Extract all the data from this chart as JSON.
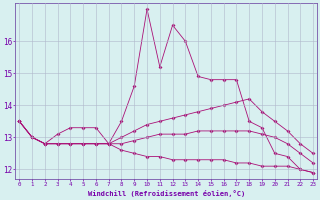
{
  "xlabel": "Windchill (Refroidissement éolien,°C)",
  "x": [
    0,
    1,
    2,
    3,
    4,
    5,
    6,
    7,
    8,
    9,
    10,
    11,
    12,
    13,
    14,
    15,
    16,
    17,
    18,
    19,
    20,
    21,
    22,
    23
  ],
  "line1": [
    13.5,
    13.0,
    12.8,
    13.1,
    13.3,
    13.3,
    13.3,
    12.8,
    13.5,
    14.6,
    17.0,
    15.2,
    16.5,
    16.0,
    14.9,
    14.8,
    14.8,
    14.8,
    13.5,
    13.3,
    12.5,
    12.4,
    12.0,
    11.9
  ],
  "line2": [
    13.5,
    13.0,
    12.8,
    12.8,
    12.8,
    12.8,
    12.8,
    12.8,
    13.0,
    13.2,
    13.4,
    13.5,
    13.6,
    13.7,
    13.8,
    13.9,
    14.0,
    14.1,
    14.2,
    13.8,
    13.5,
    13.2,
    12.8,
    12.5
  ],
  "line3": [
    13.5,
    13.0,
    12.8,
    12.8,
    12.8,
    12.8,
    12.8,
    12.8,
    12.8,
    12.9,
    13.0,
    13.1,
    13.1,
    13.1,
    13.2,
    13.2,
    13.2,
    13.2,
    13.2,
    13.1,
    13.0,
    12.8,
    12.5,
    12.2
  ],
  "line4": [
    13.5,
    13.0,
    12.8,
    12.8,
    12.8,
    12.8,
    12.8,
    12.8,
    12.6,
    12.5,
    12.4,
    12.4,
    12.3,
    12.3,
    12.3,
    12.3,
    12.3,
    12.2,
    12.2,
    12.1,
    12.1,
    12.1,
    12.0,
    11.9
  ],
  "line_color": "#aa1177",
  "bg_color": "#d8f0f0",
  "grid_color": "#b0b8cc",
  "axis_color": "#7755aa",
  "text_color": "#7700aa",
  "ylim": [
    11.7,
    17.2
  ],
  "xlim": [
    -0.3,
    23.3
  ],
  "yticks": [
    12,
    13,
    14,
    15,
    16
  ],
  "xticks": [
    0,
    1,
    2,
    3,
    4,
    5,
    6,
    7,
    8,
    9,
    10,
    11,
    12,
    13,
    14,
    15,
    16,
    17,
    18,
    19,
    20,
    21,
    22,
    23
  ]
}
